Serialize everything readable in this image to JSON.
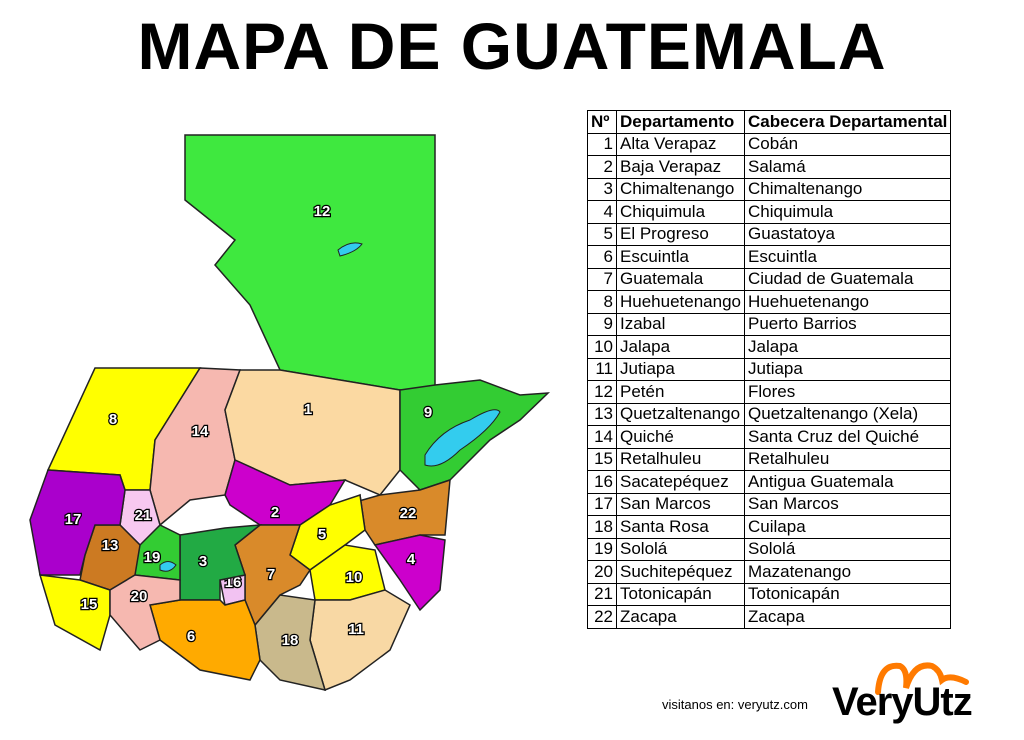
{
  "title": "MAPA DE GUATEMALA",
  "table": {
    "headers": [
      "Nº",
      "Departamento",
      "Cabecera Departamental"
    ],
    "rows": [
      {
        "n": "1",
        "dep": "Alta Verapaz",
        "cab": "Cobán"
      },
      {
        "n": "2",
        "dep": "Baja Verapaz",
        "cab": "Salamá"
      },
      {
        "n": "3",
        "dep": "Chimaltenango",
        "cab": "Chimaltenango"
      },
      {
        "n": "4",
        "dep": "Chiquimula",
        "cab": "Chiquimula"
      },
      {
        "n": "5",
        "dep": "El Progreso",
        "cab": "Guastatoya"
      },
      {
        "n": "6",
        "dep": "Escuintla",
        "cab": "Escuintla"
      },
      {
        "n": "7",
        "dep": "Guatemala",
        "cab": "Ciudad de Guatemala"
      },
      {
        "n": "8",
        "dep": "Huehuetenango",
        "cab": "Huehuetenango"
      },
      {
        "n": "9",
        "dep": "Izabal",
        "cab": "Puerto Barrios"
      },
      {
        "n": "10",
        "dep": "Jalapa",
        "cab": "Jalapa"
      },
      {
        "n": "11",
        "dep": "Jutiapa",
        "cab": "Jutiapa"
      },
      {
        "n": "12",
        "dep": "Petén",
        "cab": "Flores"
      },
      {
        "n": "13",
        "dep": "Quetzaltenango",
        "cab": "Quetzaltenango (Xela)"
      },
      {
        "n": "14",
        "dep": "Quiché",
        "cab": "Santa Cruz del Quiché"
      },
      {
        "n": "15",
        "dep": "Retalhuleu",
        "cab": "Retalhuleu"
      },
      {
        "n": "16",
        "dep": "Sacatepéquez",
        "cab": "Antigua Guatemala"
      },
      {
        "n": "17",
        "dep": "San Marcos",
        "cab": "San Marcos"
      },
      {
        "n": "18",
        "dep": "Santa Rosa",
        "cab": "Cuilapa"
      },
      {
        "n": "19",
        "dep": "Sololá",
        "cab": "Sololá"
      },
      {
        "n": "20",
        "dep": "Suchitepéquez",
        "cab": "Mazatenango"
      },
      {
        "n": "21",
        "dep": "Totonicapán",
        "cab": "Totonicapán"
      },
      {
        "n": "22",
        "dep": "Zacapa",
        "cab": "Zacapa"
      }
    ]
  },
  "map": {
    "regions": [
      {
        "n": "12",
        "color": "#3fe83f"
      },
      {
        "n": "8",
        "color": "#ffff00"
      },
      {
        "n": "14",
        "color": "#f6b8b0"
      },
      {
        "n": "1",
        "color": "#fbd9a2"
      },
      {
        "n": "9",
        "color": "#33cc33"
      },
      {
        "n": "2",
        "color": "#cc00cc"
      },
      {
        "n": "22",
        "color": "#d98a2a"
      },
      {
        "n": "5",
        "color": "#ffff00"
      },
      {
        "n": "4",
        "color": "#cc00cc"
      },
      {
        "n": "10",
        "color": "#ffff00"
      },
      {
        "n": "11",
        "color": "#f8d8a4"
      },
      {
        "n": "18",
        "color": "#c9b98c"
      },
      {
        "n": "7",
        "color": "#d98a2a"
      },
      {
        "n": "16",
        "color": "#f2c2f2"
      },
      {
        "n": "3",
        "color": "#22aa44"
      },
      {
        "n": "6",
        "color": "#ffaa00"
      },
      {
        "n": "19",
        "color": "#33cc33"
      },
      {
        "n": "21",
        "color": "#f7c8f0"
      },
      {
        "n": "13",
        "color": "#cc7a22"
      },
      {
        "n": "17",
        "color": "#aa00cc"
      },
      {
        "n": "15",
        "color": "#ffff00"
      },
      {
        "n": "20",
        "color": "#f6b8b0"
      }
    ],
    "lake_color": "#33ccee"
  },
  "footer": {
    "visit": "visitanos en: veryutz.com",
    "logo": "VeryUtz",
    "logo_color": "#ff7a00"
  }
}
